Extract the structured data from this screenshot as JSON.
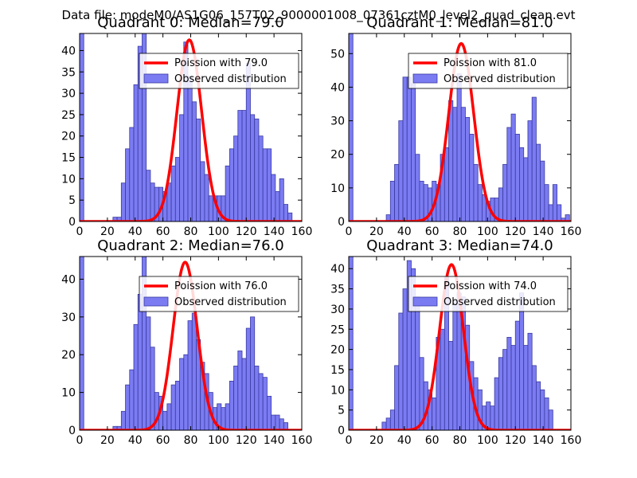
{
  "figure": {
    "suptitle": "Data file: modeM0/AS1G06_157T02_9000001008_07361cztM0_level2_quad_clean.evt"
  },
  "colors": {
    "bar_fill": "#7b7bf2",
    "bar_edge": "#3a3aa0",
    "poisson_line": "#ff0000"
  },
  "chart_data": [
    {
      "type": "bar",
      "title": "Quadrant 0: Median=79.0",
      "xlim": [
        0,
        160
      ],
      "ylim": [
        0,
        44
      ],
      "xticks": [
        0,
        20,
        40,
        60,
        80,
        100,
        120,
        140,
        160
      ],
      "yticks": [
        0,
        5,
        10,
        15,
        20,
        25,
        30,
        35,
        40
      ],
      "bin_width": 3,
      "bin_starts": [
        0,
        24,
        27,
        30,
        33,
        36,
        39,
        42,
        45,
        48,
        51,
        54,
        57,
        60,
        63,
        66,
        69,
        72,
        75,
        78,
        81,
        84,
        87,
        90,
        93,
        96,
        99,
        102,
        105,
        108,
        111,
        114,
        117,
        120,
        123,
        126,
        129,
        132,
        135,
        138,
        141,
        144,
        147,
        150
      ],
      "counts": [
        44,
        1,
        1,
        9,
        17,
        22,
        32,
        41,
        44,
        12,
        9,
        8,
        8,
        7,
        9,
        13,
        15,
        25,
        42,
        34,
        28,
        24,
        14,
        11,
        6,
        6,
        6,
        6,
        13,
        17,
        20,
        26,
        26,
        37,
        25,
        24,
        20,
        17,
        17,
        11,
        7,
        10,
        4,
        2
      ],
      "legend": {
        "line_label": "Poission with 79.0",
        "bar_label": "Observed distribution",
        "position": "upper-right"
      },
      "poisson": {
        "mean": 79.0,
        "peak": 42.5,
        "sigma": 8.9
      }
    },
    {
      "type": "bar",
      "title": "Quadrant 1: Median=81.0",
      "xlim": [
        0,
        160
      ],
      "ylim": [
        0,
        56
      ],
      "xticks": [
        0,
        20,
        40,
        60,
        80,
        100,
        120,
        140,
        160
      ],
      "yticks": [
        0,
        10,
        20,
        30,
        40,
        50
      ],
      "bin_width": 3,
      "bin_starts": [
        0,
        27,
        30,
        33,
        36,
        39,
        42,
        45,
        48,
        51,
        54,
        57,
        60,
        63,
        66,
        69,
        72,
        75,
        78,
        81,
        84,
        87,
        90,
        93,
        96,
        99,
        102,
        105,
        108,
        111,
        114,
        117,
        120,
        123,
        126,
        129,
        132,
        135,
        138,
        141,
        144,
        147,
        150,
        153,
        156
      ],
      "counts": [
        56,
        2,
        12,
        17,
        30,
        43,
        43,
        41,
        20,
        12,
        11,
        10,
        12,
        11,
        20,
        22,
        36,
        34,
        44,
        34,
        31,
        26,
        17,
        11,
        8,
        6,
        7,
        7,
        10,
        17,
        28,
        32,
        26,
        22,
        19,
        30,
        37,
        23,
        18,
        11,
        5,
        11,
        5,
        1,
        2
      ],
      "legend": {
        "line_label": "Poission with 81.0",
        "bar_label": "Observed distribution",
        "position": "upper-right"
      },
      "poisson": {
        "mean": 81.0,
        "peak": 53.0,
        "sigma": 9.0
      }
    },
    {
      "type": "bar",
      "title": "Quadrant 2: Median=76.0",
      "xlim": [
        0,
        160
      ],
      "ylim": [
        0,
        46
      ],
      "xticks": [
        0,
        20,
        40,
        60,
        80,
        100,
        120,
        140,
        160
      ],
      "yticks": [
        0,
        10,
        20,
        30,
        40
      ],
      "bin_width": 3,
      "bin_starts": [
        0,
        24,
        27,
        30,
        33,
        36,
        39,
        42,
        45,
        48,
        51,
        54,
        57,
        60,
        63,
        66,
        69,
        72,
        75,
        78,
        81,
        84,
        87,
        90,
        93,
        96,
        99,
        102,
        105,
        108,
        111,
        114,
        117,
        120,
        123,
        126,
        129,
        132,
        135,
        138,
        141,
        144,
        147
      ],
      "counts": [
        46,
        1,
        1,
        5,
        12,
        16,
        28,
        36,
        46,
        30,
        22,
        10,
        9,
        5,
        7,
        12,
        13,
        19,
        20,
        29,
        31,
        24,
        18,
        15,
        10,
        6,
        7,
        6,
        7,
        13,
        17,
        21,
        19,
        27,
        30,
        17,
        15,
        14,
        9,
        4,
        4,
        3,
        2
      ],
      "legend": {
        "line_label": "Poission with 76.0",
        "bar_label": "Observed distribution",
        "position": "upper-right"
      },
      "poisson": {
        "mean": 76.0,
        "peak": 44.5,
        "sigma": 8.7
      }
    },
    {
      "type": "bar",
      "title": "Quadrant 3: Median=74.0",
      "xlim": [
        0,
        160
      ],
      "ylim": [
        0,
        43
      ],
      "xticks": [
        0,
        20,
        40,
        60,
        80,
        100,
        120,
        140,
        160
      ],
      "yticks": [
        0,
        5,
        10,
        15,
        20,
        25,
        30,
        35,
        40
      ],
      "bin_width": 3,
      "bin_starts": [
        0,
        24,
        27,
        30,
        33,
        36,
        39,
        42,
        45,
        48,
        51,
        54,
        57,
        60,
        63,
        66,
        69,
        72,
        75,
        78,
        81,
        84,
        87,
        90,
        93,
        96,
        99,
        102,
        105,
        108,
        111,
        114,
        117,
        120,
        123,
        126,
        129,
        132,
        135,
        138,
        141,
        144
      ],
      "counts": [
        43,
        2,
        3,
        5,
        16,
        29,
        35,
        42,
        40,
        33,
        18,
        12,
        10,
        8,
        23,
        25,
        38,
        22,
        32,
        34,
        33,
        26,
        17,
        13,
        10,
        6,
        7,
        6,
        13,
        18,
        20,
        23,
        21,
        27,
        34,
        21,
        24,
        16,
        12,
        10,
        8,
        5
      ],
      "legend": {
        "line_label": "Poission with 74.0",
        "bar_label": "Observed distribution",
        "position": "upper-right"
      },
      "poisson": {
        "mean": 74.0,
        "peak": 41.0,
        "sigma": 8.6
      }
    }
  ]
}
